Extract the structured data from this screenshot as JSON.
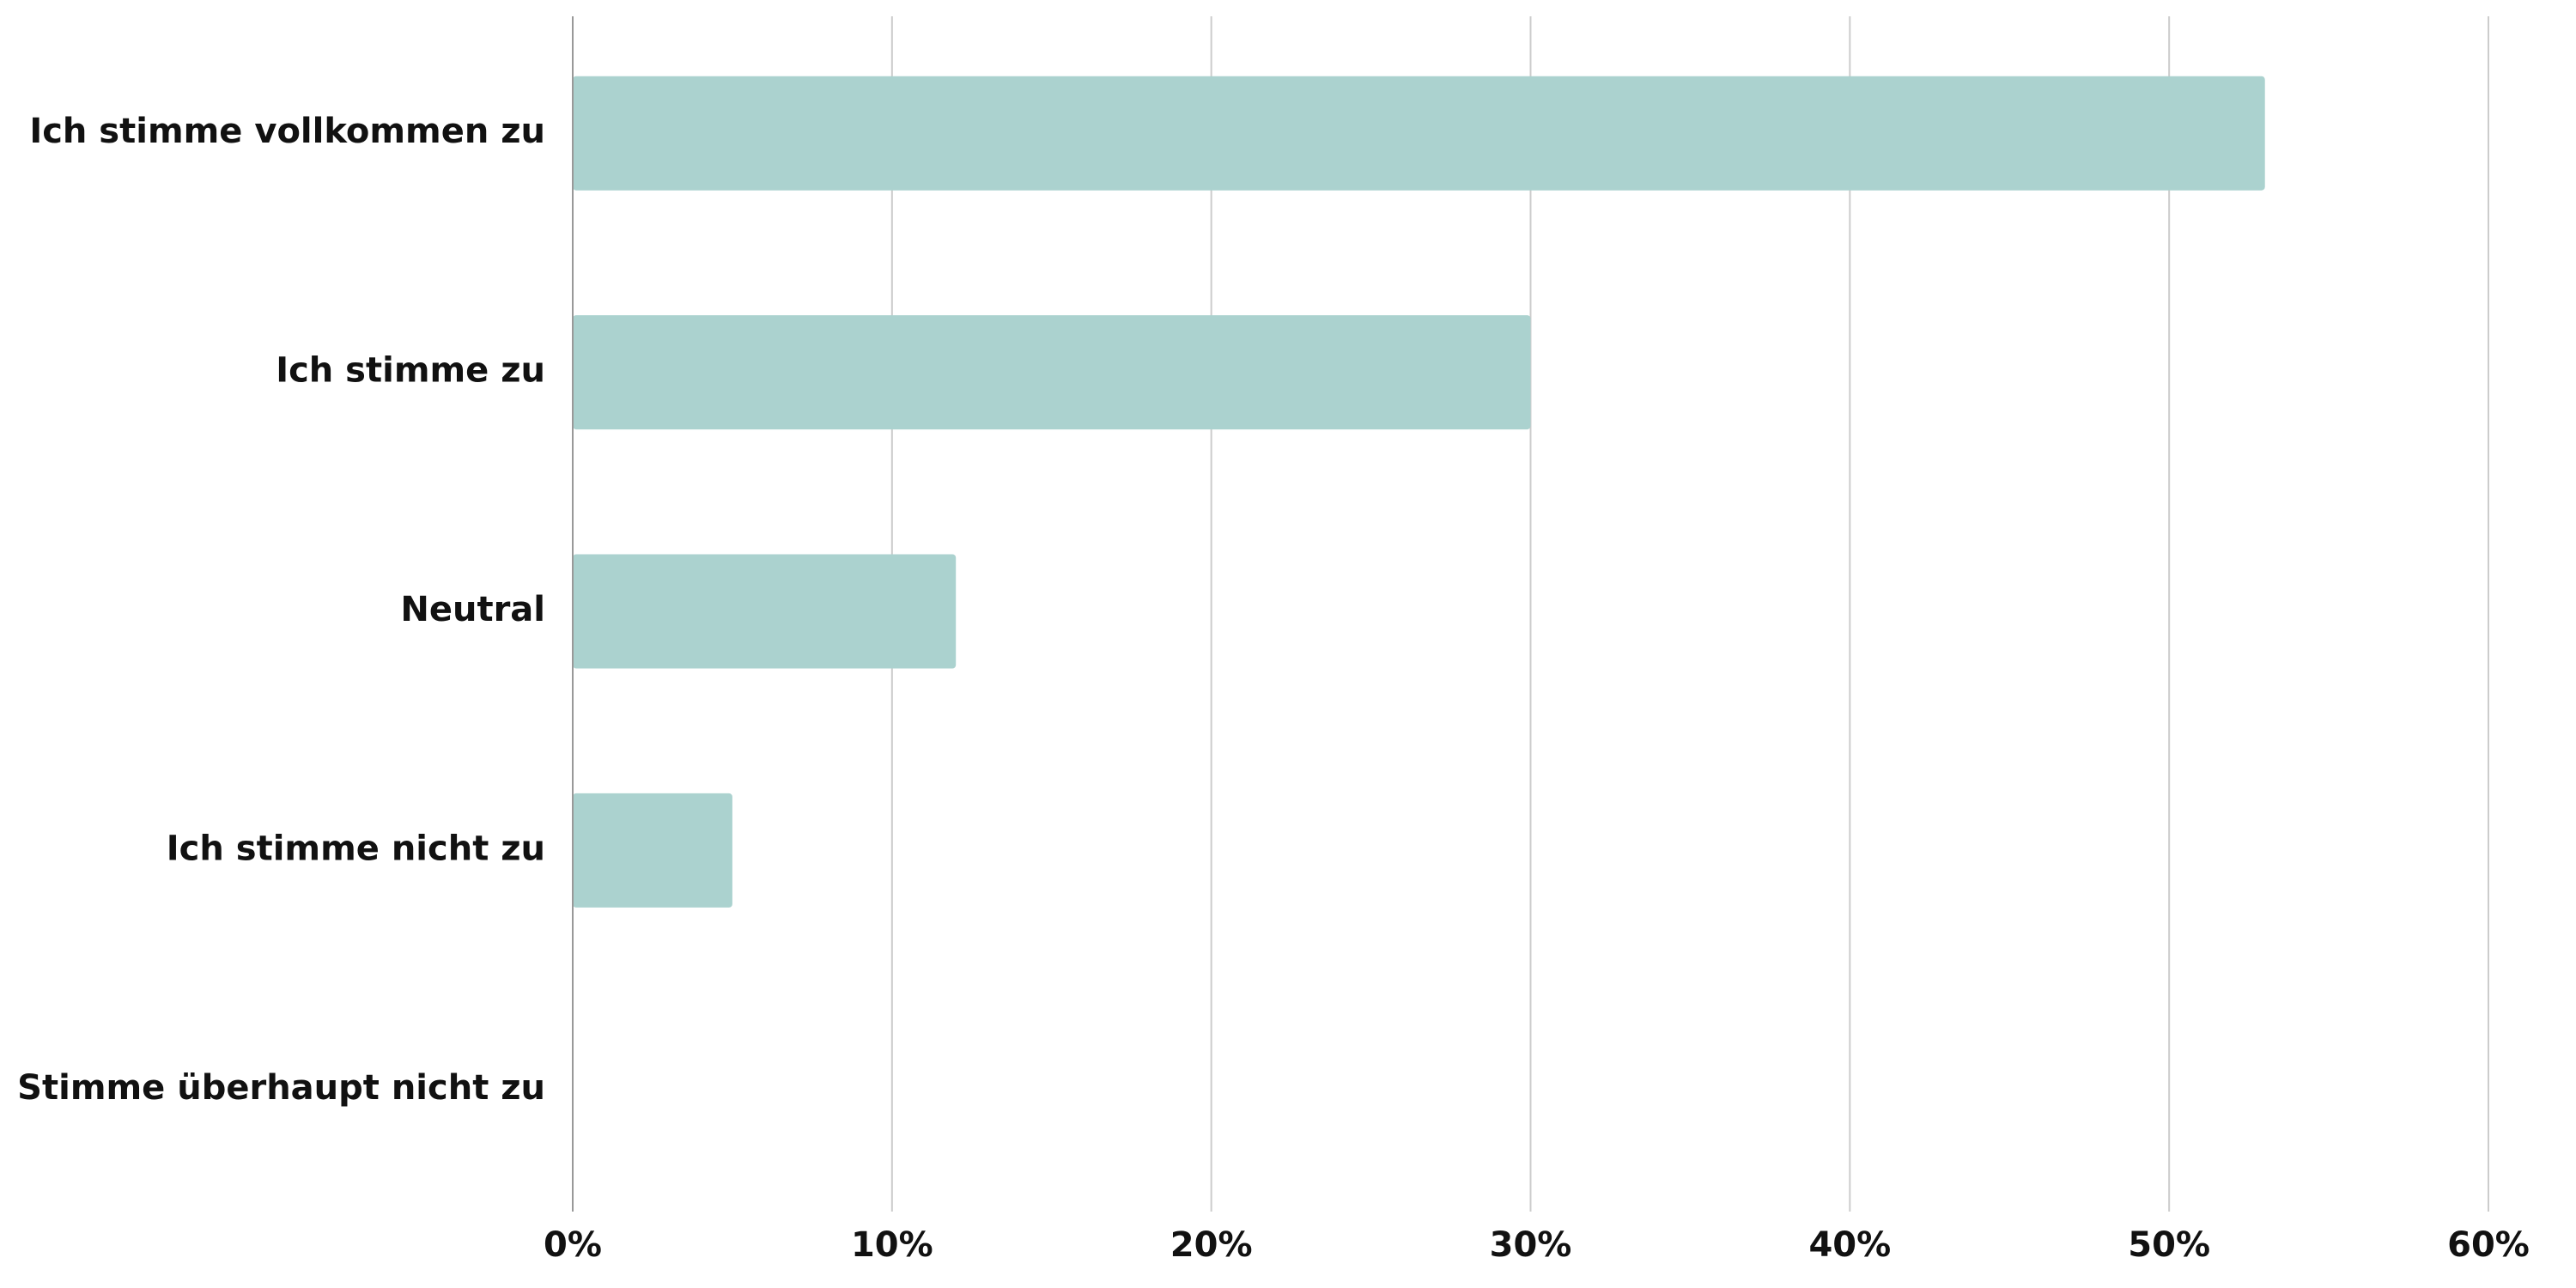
{
  "chart_data": {
    "type": "hbar",
    "categories": [
      "Ich stimme vollkommen zu",
      "Ich stimme zu",
      "Neutral",
      "Ich stimme nicht zu",
      "Stimme überhaupt nicht zu"
    ],
    "values": [
      53,
      30,
      12,
      5,
      0
    ],
    "color": "#abd2cf",
    "xlim": [
      0,
      60
    ],
    "xticks": [
      {
        "value": 0,
        "label": "0%"
      },
      {
        "value": 10,
        "label": "10%"
      },
      {
        "value": 20,
        "label": "20%"
      },
      {
        "value": 30,
        "label": "30%"
      },
      {
        "value": 40,
        "label": "40%"
      },
      {
        "value": 50,
        "label": "50%"
      },
      {
        "value": 60,
        "label": "60%"
      }
    ],
    "grid": true
  }
}
